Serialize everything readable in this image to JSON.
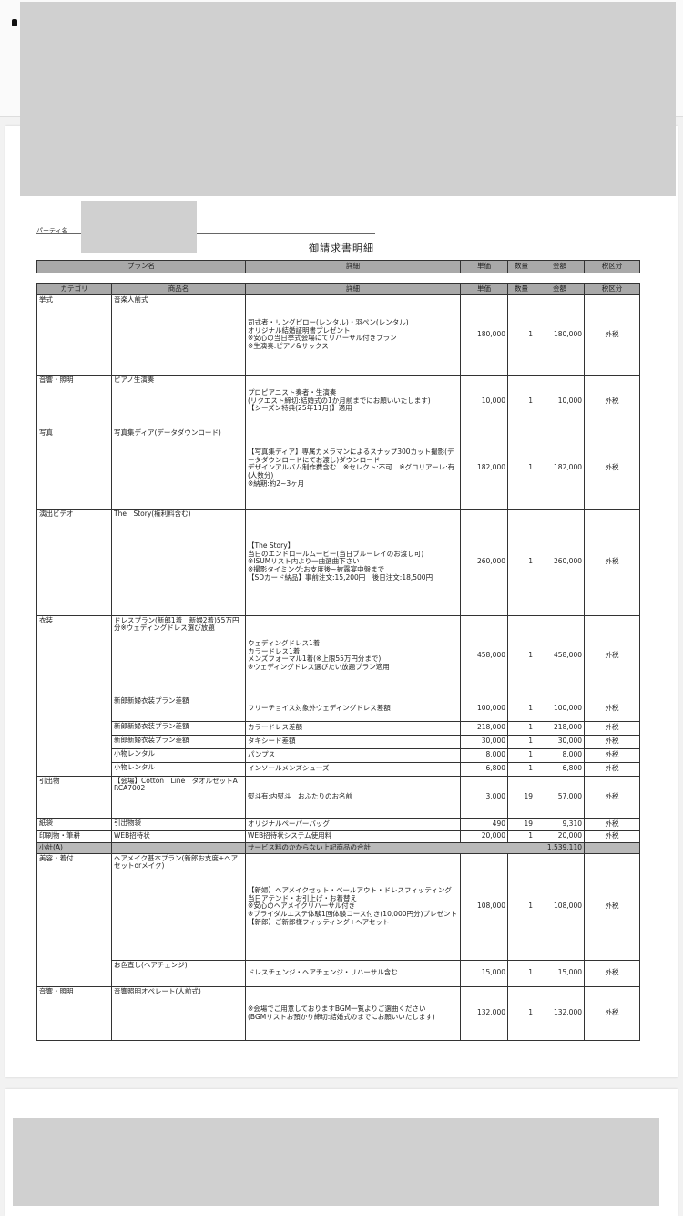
{
  "document": {
    "party_label": "パーティ名",
    "title": "御請求書明細",
    "summary_header": [
      "プラン名",
      "詳細",
      "単価",
      "数量",
      "金額",
      "税区分"
    ],
    "columns": [
      "カテゴリ",
      "商品名",
      "詳細",
      "単価",
      "数量",
      "金額",
      "税区分"
    ],
    "rows": [
      {
        "category": "挙式",
        "name": "音楽人前式",
        "detail": "司式者・リングピロー(レンタル)・羽ペン(レンタル)\nオリジナル結婚証明書プレゼント\n※安心の当日挙式会場にてリハーサル付きプラン\n※生演奏:ピアノ&サックス",
        "unit": "180,000",
        "qty": "1",
        "amount": "180,000",
        "tax": "外税"
      },
      {
        "category": "音響・照明",
        "name": "ピアノ生演奏",
        "detail": "プロピアニスト奏者・生演奏\n(リクエスト締切:結婚式の1か月前までにお願いいたします)\n【シーズン特典(25年11月)】適用",
        "unit": "10,000",
        "qty": "1",
        "amount": "10,000",
        "tax": "外税"
      },
      {
        "category": "写真",
        "name": "写真集ディア(データダウンロード)",
        "detail": "【写真集ディア】専属カメラマンによるスナップ300カット撮影(データダウンロードにてお渡し)ダウンロード\nデザインアルバム制作費含む　※セレクト:不可　※グロリアーレ:有(人数分)\n※納期:約2~3ヶ月",
        "unit": "182,000",
        "qty": "1",
        "amount": "182,000",
        "tax": "外税"
      },
      {
        "category": "演出ビデオ",
        "name": "The　Story(権利料含む)",
        "detail": "【The Story】\n当日のエンドロールムービー(当日ブルーレイのお渡し可)\n※ISUMリスト内より一曲選曲下さい\n※撮影タイミング:お支度後~披露宴中盤まで\n【SDカード納品】事前注文:15,200円　後日注文:18,500円",
        "unit": "260,000",
        "qty": "1",
        "amount": "260,000",
        "tax": "外税"
      },
      {
        "category": "衣装",
        "name": "ドレスプラン(新郎1着　新婦2着)55万円分※ウェディングドレス選び放題",
        "detail": "ウェディングドレス1着\nカラードレス1着\nメンズフォーマル1着(※上限55万円分まで)\n※ウェディングドレス選びたい放題プラン適用",
        "unit": "458,000",
        "qty": "1",
        "amount": "458,000",
        "tax": "外税"
      },
      {
        "category": "",
        "name": "新郎新婦衣装プラン差額",
        "detail": "フリーチョイス対象外ウェディングドレス差額",
        "unit": "100,000",
        "qty": "1",
        "amount": "100,000",
        "tax": "外税"
      },
      {
        "category": "",
        "name": "新郎新婦衣装プラン差額",
        "detail": "カラードレス差額",
        "unit": "218,000",
        "qty": "1",
        "amount": "218,000",
        "tax": "外税"
      },
      {
        "category": "",
        "name": "新郎新婦衣装プラン差額",
        "detail": "タキシード差額",
        "unit": "30,000",
        "qty": "1",
        "amount": "30,000",
        "tax": "外税"
      },
      {
        "category": "",
        "name": "小物レンタル",
        "detail": "パンプス",
        "unit": "8,000",
        "qty": "1",
        "amount": "8,000",
        "tax": "外税"
      },
      {
        "category": "",
        "name": "小物レンタル",
        "detail": "インソールメンズシューズ",
        "unit": "6,800",
        "qty": "1",
        "amount": "6,800",
        "tax": "外税"
      },
      {
        "category": "引出物",
        "name": "【会場】Cotton　Line　タオルセットA　RCA7002",
        "detail": "熨斗有:内熨斗　おふたりのお名前",
        "unit": "3,000",
        "qty": "19",
        "amount": "57,000",
        "tax": "外税"
      },
      {
        "category": "紙袋",
        "name": "引出物袋",
        "detail": "オリジナルペーパーバッグ",
        "unit": "490",
        "qty": "19",
        "amount": "9,310",
        "tax": "外税"
      },
      {
        "category": "印刷物・筆耕",
        "name": "WEB招待状",
        "detail": "WEB招待状システム使用料",
        "unit": "20,000",
        "qty": "1",
        "amount": "20,000",
        "tax": "外税"
      },
      {
        "subtotal": true,
        "category": "小計(A)",
        "detail": "サービス料のかからない上記商品の合計",
        "amount": "1,539,110"
      },
      {
        "category": "美容・着付",
        "name": "ヘアメイク基本プラン(新郎お支度+ヘアセットorメイク)",
        "detail": "【新婦】ヘアメイクセット・ベールアウト・ドレスフィッティング\n当日アテンド・お引上げ・お着替え\n※安心のヘアメイクリハーサル付き\n※ブライダルエステ体験1回体験コース付き(10,000円分)プレゼント\n【新郎】ご新郎様フィッティング+ヘアセット",
        "unit": "108,000",
        "qty": "1",
        "amount": "108,000",
        "tax": "外税"
      },
      {
        "category": "",
        "name": "お色直し(ヘアチェンジ)",
        "detail": "ドレスチェンジ・ヘアチェンジ・リハーサル含む",
        "unit": "15,000",
        "qty": "1",
        "amount": "15,000",
        "tax": "外税"
      },
      {
        "category": "音響・照明",
        "name": "音響照明オペレート(人前式)",
        "detail": "※会場でご用意しておりますBGM一覧よりご選曲ください\n(BGMリストお預かり締切:結婚式のまでにお願いいたします)",
        "unit": "132,000",
        "qty": "1",
        "amount": "132,000",
        "tax": "外税"
      }
    ]
  }
}
